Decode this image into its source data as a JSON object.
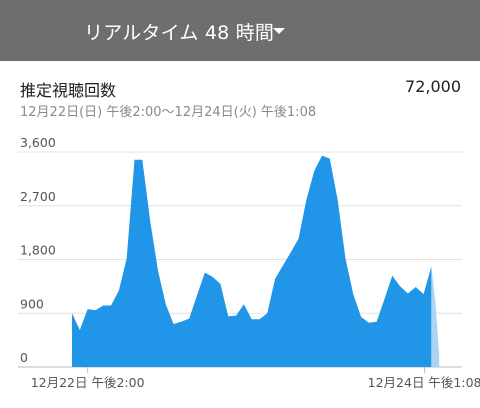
{
  "header": {
    "title": "リアルタイム 48 時間",
    "dropdown_icon": "caret-down-icon"
  },
  "metric": {
    "label": "推定視聴回数",
    "value": "72,000",
    "range": "12月22日(日) 午後2:00〜12月24日(火) 午後1:08"
  },
  "colors": {
    "header_bg": "#6e6e6e",
    "area": "#2196e8",
    "area_current": "#a9d4f5"
  },
  "chart_data": {
    "type": "area",
    "ylim": [
      0,
      3600
    ],
    "yticks": [
      {
        "value": 0,
        "label": "0"
      },
      {
        "value": 900,
        "label": "900"
      },
      {
        "value": 1800,
        "label": "1,800"
      },
      {
        "value": 2700,
        "label": "2,700"
      },
      {
        "value": 3600,
        "label": "3,600"
      }
    ],
    "xlim": [
      0,
      48
    ],
    "xticks": [
      {
        "value": 2,
        "label": "12月22日 午後2:00"
      },
      {
        "value": 45.13,
        "label": "12月24日 午後1:08"
      }
    ],
    "grid": true,
    "series": [
      {
        "x": [
          0,
          1,
          2,
          3,
          4,
          5,
          6,
          7,
          8,
          9,
          10,
          11,
          12,
          13,
          14,
          15,
          16,
          17,
          18,
          19,
          20,
          21,
          22,
          23,
          24,
          25,
          26,
          27,
          28,
          29,
          30,
          31,
          32,
          33,
          34,
          35,
          36,
          37,
          38,
          39,
          40,
          41,
          42,
          43,
          44,
          45,
          46
        ],
        "values": [
          900,
          620,
          970,
          950,
          1030,
          1030,
          1280,
          1820,
          3470,
          3470,
          2450,
          1620,
          1050,
          720,
          760,
          810,
          1200,
          1580,
          1510,
          1390,
          850,
          860,
          1050,
          800,
          800,
          900,
          1480,
          1700,
          1920,
          2150,
          2800,
          3280,
          3540,
          3490,
          2800,
          1820,
          1220,
          840,
          740,
          760,
          1140,
          1530,
          1350,
          1230,
          1340,
          1220,
          1680
        ]
      },
      {
        "x": [
          46,
          46.5,
          47
        ],
        "values": [
          1680,
          1100,
          200
        ],
        "current_hour": true
      }
    ]
  }
}
